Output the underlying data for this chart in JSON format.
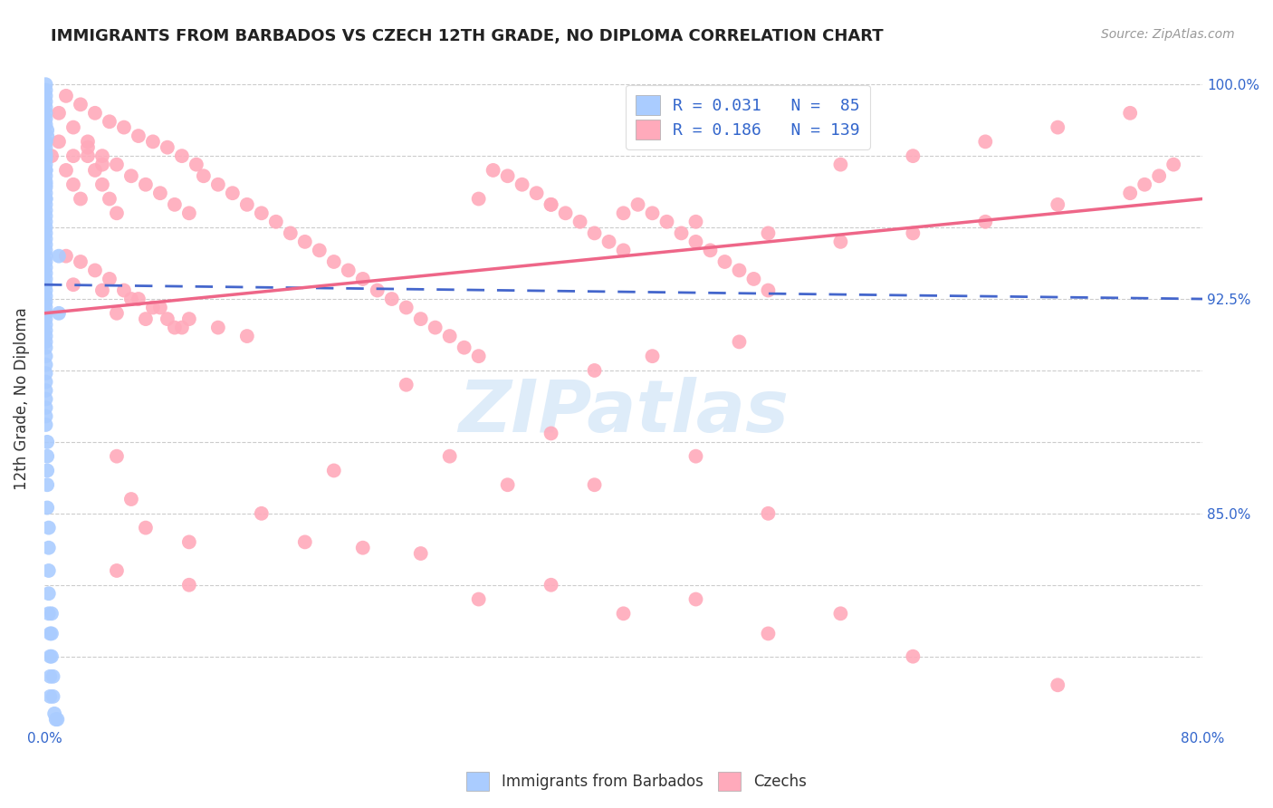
{
  "title": "IMMIGRANTS FROM BARBADOS VS CZECH 12TH GRADE, NO DIPLOMA CORRELATION CHART",
  "source": "Source: ZipAtlas.com",
  "ylabel": "12th Grade, No Diploma",
  "x_min": 0.0,
  "x_max": 0.8,
  "y_min": 0.775,
  "y_max": 1.005,
  "watermark_text": "ZIPatlas",
  "barbados_color": "#aaccff",
  "czech_color": "#ffaabb",
  "barbados_line_color": "#4466cc",
  "czech_line_color": "#ee6688",
  "legend_label_barbados": "R = 0.031   N =  85",
  "legend_label_czech": "R = 0.186   N = 139",
  "bottom_label_barbados": "Immigrants from Barbados",
  "bottom_label_czech": "Czechs",
  "barbados_x": [
    0.001,
    0.001,
    0.001,
    0.001,
    0.001,
    0.001,
    0.001,
    0.001,
    0.002,
    0.002,
    0.001,
    0.001,
    0.001,
    0.001,
    0.001,
    0.001,
    0.001,
    0.001,
    0.001,
    0.001,
    0.001,
    0.001,
    0.001,
    0.001,
    0.001,
    0.001,
    0.001,
    0.001,
    0.001,
    0.001,
    0.001,
    0.001,
    0.001,
    0.001,
    0.001,
    0.001,
    0.001,
    0.001,
    0.001,
    0.001,
    0.001,
    0.001,
    0.001,
    0.001,
    0.001,
    0.001,
    0.001,
    0.001,
    0.001,
    0.001,
    0.001,
    0.001,
    0.001,
    0.001,
    0.001,
    0.001,
    0.002,
    0.002,
    0.002,
    0.002,
    0.002,
    0.003,
    0.003,
    0.003,
    0.003,
    0.003,
    0.004,
    0.004,
    0.004,
    0.004,
    0.005,
    0.005,
    0.005,
    0.006,
    0.006,
    0.007,
    0.008,
    0.009,
    0.01,
    0.01,
    0.001,
    0.001,
    0.001,
    0.001,
    0.001
  ],
  "barbados_y": [
    1.0,
    0.998,
    0.996,
    0.994,
    0.992,
    0.99,
    0.988,
    0.986,
    0.984,
    0.982,
    0.98,
    0.978,
    0.976,
    0.974,
    0.972,
    0.97,
    0.968,
    0.966,
    0.964,
    0.962,
    0.96,
    0.958,
    0.956,
    0.954,
    0.952,
    0.95,
    0.948,
    0.946,
    0.944,
    0.942,
    0.94,
    0.938,
    0.936,
    0.934,
    0.932,
    0.93,
    0.928,
    0.926,
    0.924,
    0.922,
    0.92,
    0.918,
    0.916,
    0.914,
    0.912,
    0.91,
    0.908,
    0.905,
    0.902,
    0.899,
    0.896,
    0.893,
    0.89,
    0.887,
    0.884,
    0.881,
    0.875,
    0.87,
    0.865,
    0.86,
    0.852,
    0.845,
    0.838,
    0.83,
    0.822,
    0.815,
    0.808,
    0.8,
    0.793,
    0.786,
    0.815,
    0.808,
    0.8,
    0.793,
    0.786,
    0.78,
    0.778,
    0.778,
    0.94,
    0.92,
    0.96,
    0.965,
    0.97,
    0.975,
    0.98
  ],
  "czech_x": [
    0.005,
    0.01,
    0.015,
    0.02,
    0.025,
    0.03,
    0.035,
    0.04,
    0.045,
    0.05,
    0.01,
    0.02,
    0.03,
    0.04,
    0.05,
    0.06,
    0.07,
    0.08,
    0.09,
    0.1,
    0.015,
    0.025,
    0.035,
    0.045,
    0.055,
    0.065,
    0.075,
    0.085,
    0.095,
    0.105,
    0.11,
    0.12,
    0.13,
    0.14,
    0.15,
    0.16,
    0.17,
    0.18,
    0.19,
    0.2,
    0.21,
    0.22,
    0.23,
    0.24,
    0.25,
    0.26,
    0.27,
    0.28,
    0.29,
    0.3,
    0.31,
    0.32,
    0.33,
    0.34,
    0.35,
    0.36,
    0.37,
    0.38,
    0.39,
    0.4,
    0.41,
    0.42,
    0.43,
    0.44,
    0.45,
    0.46,
    0.47,
    0.48,
    0.49,
    0.5,
    0.015,
    0.025,
    0.035,
    0.045,
    0.055,
    0.065,
    0.075,
    0.085,
    0.095,
    0.02,
    0.04,
    0.06,
    0.08,
    0.1,
    0.12,
    0.14,
    0.05,
    0.07,
    0.09,
    0.3,
    0.35,
    0.4,
    0.45,
    0.5,
    0.55,
    0.6,
    0.65,
    0.7,
    0.75,
    0.55,
    0.6,
    0.65,
    0.7,
    0.75,
    0.76,
    0.77,
    0.78,
    0.02,
    0.03,
    0.04,
    0.25,
    0.35,
    0.45,
    0.38,
    0.42,
    0.48,
    0.2,
    0.15,
    0.1,
    0.05,
    0.06,
    0.07,
    0.28,
    0.32,
    0.18,
    0.22,
    0.26,
    0.38,
    0.5,
    0.3,
    0.4,
    0.5,
    0.6,
    0.7,
    0.35,
    0.45,
    0.55,
    0.05,
    0.1
  ],
  "czech_y": [
    0.975,
    0.98,
    0.97,
    0.965,
    0.96,
    0.975,
    0.97,
    0.965,
    0.96,
    0.955,
    0.99,
    0.985,
    0.98,
    0.975,
    0.972,
    0.968,
    0.965,
    0.962,
    0.958,
    0.955,
    0.996,
    0.993,
    0.99,
    0.987,
    0.985,
    0.982,
    0.98,
    0.978,
    0.975,
    0.972,
    0.968,
    0.965,
    0.962,
    0.958,
    0.955,
    0.952,
    0.948,
    0.945,
    0.942,
    0.938,
    0.935,
    0.932,
    0.928,
    0.925,
    0.922,
    0.918,
    0.915,
    0.912,
    0.908,
    0.905,
    0.97,
    0.968,
    0.965,
    0.962,
    0.958,
    0.955,
    0.952,
    0.948,
    0.945,
    0.942,
    0.958,
    0.955,
    0.952,
    0.948,
    0.945,
    0.942,
    0.938,
    0.935,
    0.932,
    0.928,
    0.94,
    0.938,
    0.935,
    0.932,
    0.928,
    0.925,
    0.922,
    0.918,
    0.915,
    0.93,
    0.928,
    0.925,
    0.922,
    0.918,
    0.915,
    0.912,
    0.92,
    0.918,
    0.915,
    0.96,
    0.958,
    0.955,
    0.952,
    0.948,
    0.972,
    0.975,
    0.98,
    0.985,
    0.99,
    0.945,
    0.948,
    0.952,
    0.958,
    0.962,
    0.965,
    0.968,
    0.972,
    0.975,
    0.978,
    0.972,
    0.895,
    0.878,
    0.87,
    0.9,
    0.905,
    0.91,
    0.865,
    0.85,
    0.84,
    0.87,
    0.855,
    0.845,
    0.87,
    0.86,
    0.84,
    0.838,
    0.836,
    0.86,
    0.85,
    0.82,
    0.815,
    0.808,
    0.8,
    0.79,
    0.825,
    0.82,
    0.815,
    0.83,
    0.825
  ],
  "barbados_trend_x": [
    0.0,
    0.8
  ],
  "barbados_trend_y": [
    0.93,
    0.925
  ],
  "czech_trend_x": [
    0.0,
    0.8
  ],
  "czech_trend_y": [
    0.92,
    0.96
  ]
}
